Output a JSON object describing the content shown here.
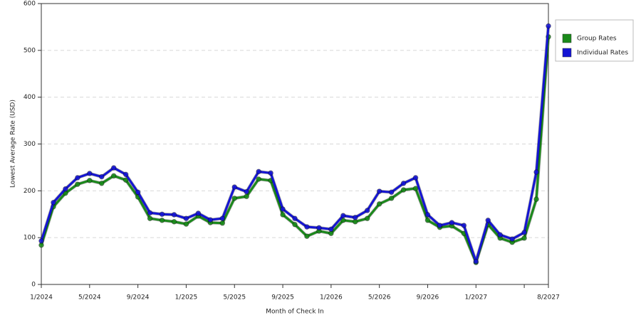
{
  "chart_data": {
    "type": "line",
    "x_label": "Month of Check In",
    "y_label": "Lowest Average Rate (USD)",
    "categories": [
      "1/2024",
      null,
      null,
      null,
      "5/2024",
      null,
      null,
      null,
      "9/2024",
      null,
      null,
      null,
      "1/2025",
      null,
      null,
      null,
      "5/2025",
      null,
      null,
      null,
      "9/2025",
      null,
      null,
      null,
      "1/2026",
      null,
      null,
      null,
      "5/2026",
      null,
      null,
      null,
      "9/2026",
      null,
      null,
      null,
      "1/2027",
      null,
      null,
      null,
      null,
      null,
      "8/2027"
    ],
    "ylim": [
      0,
      600
    ],
    "yticks": [
      0,
      100,
      200,
      300,
      400,
      500,
      600
    ],
    "grid": true,
    "legend": "right",
    "series": [
      {
        "name": "Group Rates",
        "color": "#1a8a1a",
        "values": [
          84,
          166,
          195,
          214,
          222,
          216,
          232,
          223,
          187,
          141,
          137,
          134,
          129,
          146,
          132,
          131,
          184,
          188,
          225,
          222,
          149,
          128,
          103,
          114,
          109,
          137,
          134,
          141,
          172,
          184,
          202,
          205,
          137,
          122,
          125,
          109,
          47,
          128,
          99,
          90,
          99,
          182,
          529
        ]
      },
      {
        "name": "Individual Rates",
        "color": "#1414d4",
        "values": [
          93,
          175,
          204,
          228,
          237,
          230,
          249,
          235,
          197,
          153,
          150,
          149,
          141,
          152,
          138,
          141,
          208,
          198,
          241,
          238,
          161,
          141,
          123,
          121,
          118,
          147,
          143,
          158,
          199,
          197,
          216,
          228,
          149,
          126,
          132,
          126,
          49,
          137,
          106,
          97,
          111,
          240,
          552
        ]
      }
    ]
  }
}
